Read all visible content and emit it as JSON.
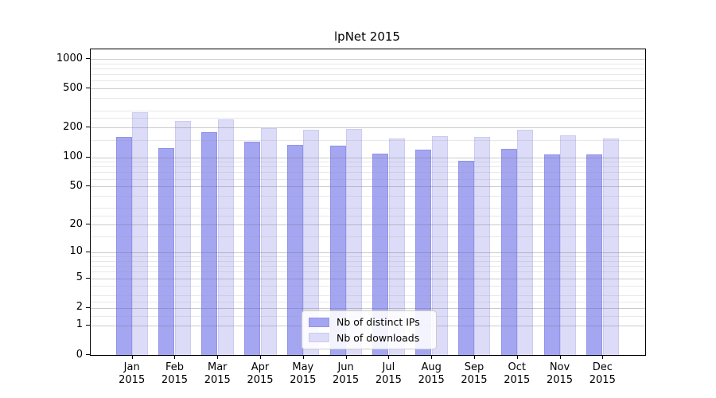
{
  "chart_data": {
    "type": "bar",
    "title": "lpNet 2015",
    "categories": [
      "Jan 2015",
      "Feb 2015",
      "Mar 2015",
      "Apr 2015",
      "May 2015",
      "Jun 2015",
      "Jul 2015",
      "Aug 2015",
      "Sep 2015",
      "Oct 2015",
      "Nov 2015",
      "Dec 2015"
    ],
    "x_tick_line1": [
      "Jan",
      "Feb",
      "Mar",
      "Apr",
      "May",
      "Jun",
      "Jul",
      "Aug",
      "Sep",
      "Oct",
      "Nov",
      "Dec"
    ],
    "x_tick_line2": "2015",
    "series": [
      {
        "name": "Nb of distinct IPs",
        "color": "#a5a6f1",
        "edge_color": "#9193e8",
        "values": [
          160,
          125,
          182,
          143,
          133,
          132,
          109,
          119,
          92,
          121,
          106,
          106
        ]
      },
      {
        "name": "Nb of downloads",
        "color": "#dcdcf8",
        "edge_color": "#cbcbf2",
        "values": [
          290,
          233,
          243,
          197,
          190,
          196,
          155,
          163,
          161,
          190,
          166,
          155
        ]
      }
    ],
    "y_ticks": [
      0,
      1,
      2,
      5,
      10,
      20,
      50,
      100,
      200,
      500,
      1000
    ],
    "y_minor_ticks": [
      1.5,
      2.5,
      3,
      4,
      6,
      7,
      8,
      9,
      15,
      25,
      30,
      40,
      60,
      70,
      80,
      90,
      150,
      250,
      300,
      400,
      600,
      700,
      800,
      900
    ],
    "scale": "log10(1+x)",
    "ylim": [
      0,
      1250
    ],
    "grid": true,
    "grid_on_top": true,
    "legend_position": "lower center",
    "colors": {
      "major_grid": "#6e6e6e",
      "major_grid_alpha": 0.35,
      "minor_grid": "#969696",
      "minor_grid_alpha": 0.22,
      "axis": "#000000",
      "background": "#ffffff"
    }
  }
}
